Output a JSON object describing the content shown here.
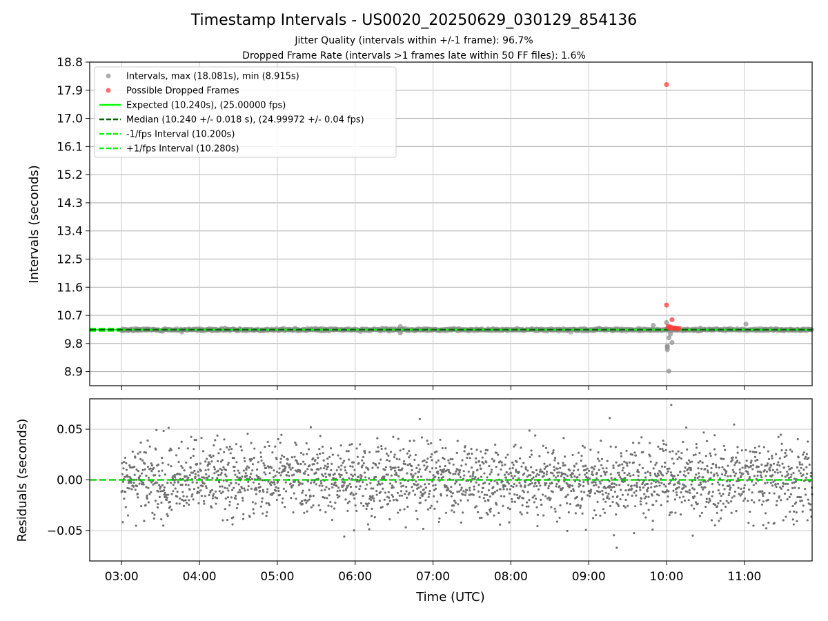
{
  "chart_data": [
    {
      "type": "scatter",
      "title": "Timestamp Intervals - US0020_20250629_030129_854136",
      "subtitle_lines": [
        "Jitter Quality (intervals within +/-1 frame): 96.7%",
        "Dropped Frame Rate (intervals >1 frames late within 50 FF files): 1.6%"
      ],
      "xlabel": "",
      "ylabel": "Intervals (seconds)",
      "x_ticks": [
        "03:00",
        "04:00",
        "05:00",
        "06:00",
        "07:00",
        "08:00",
        "09:00",
        "10:00",
        "11:00"
      ],
      "xlim_hours": [
        2.59,
        11.87
      ],
      "y_ticks": [
        "8.9",
        "9.8",
        "10.7",
        "11.6",
        "12.5",
        "13.4",
        "14.3",
        "15.2",
        "16.1",
        "17.0",
        "17.9",
        "18.8"
      ],
      "ylim": [
        8.45,
        18.8
      ],
      "grid": true,
      "legend_position": "top-left",
      "legend": [
        "Intervals, max (18.081s), min (8.915s)",
        "Possible Dropped Frames",
        "Expected (10.240s), (25.00000 fps)",
        "Median (10.240 +/- 0.018 s), (24.99972 +/- 0.04 fps)",
        "-1/fps Interval (10.200s)",
        "+1/fps Interval (10.280s)"
      ],
      "reference_lines": {
        "expected": 10.24,
        "median": 10.24,
        "minus_fps": 10.2,
        "plus_fps": 10.28
      },
      "series": [
        {
          "name": "Intervals, max (18.081s), min (8.915s)",
          "band": {
            "x_start_hour": 3.0,
            "x_end_hour": 11.87,
            "y_center": 10.24,
            "y_spread": 0.02
          },
          "outliers": [
            {
              "x_hour": 6.58,
              "y": 10.34
            },
            {
              "x_hour": 6.58,
              "y": 10.14
            },
            {
              "x_hour": 9.83,
              "y": 10.38
            },
            {
              "x_hour": 10.0,
              "y": 10.47
            },
            {
              "x_hour": 10.01,
              "y": 9.6
            },
            {
              "x_hour": 10.01,
              "y": 9.68
            },
            {
              "x_hour": 10.01,
              "y": 9.72
            },
            {
              "x_hour": 10.03,
              "y": 9.98
            },
            {
              "x_hour": 10.03,
              "y": 8.915
            },
            {
              "x_hour": 10.05,
              "y": 10.1
            },
            {
              "x_hour": 10.07,
              "y": 9.83
            },
            {
              "x_hour": 11.02,
              "y": 10.42
            }
          ]
        },
        {
          "name": "Possible Dropped Frames",
          "points": [
            {
              "x_hour": 10.0,
              "y": 18.081
            },
            {
              "x_hour": 10.0,
              "y": 11.03
            },
            {
              "x_hour": 10.07,
              "y": 10.56
            },
            {
              "x_hour": 10.02,
              "y": 10.35
            },
            {
              "x_hour": 10.03,
              "y": 10.3
            },
            {
              "x_hour": 10.05,
              "y": 10.33
            },
            {
              "x_hour": 10.06,
              "y": 10.29
            },
            {
              "x_hour": 10.08,
              "y": 10.3
            },
            {
              "x_hour": 10.1,
              "y": 10.29
            },
            {
              "x_hour": 10.12,
              "y": 10.29
            },
            {
              "x_hour": 10.14,
              "y": 10.28
            },
            {
              "x_hour": 10.16,
              "y": 10.28
            }
          ]
        }
      ],
      "colors": {
        "intervals": "#8c8c8c",
        "dropped": "#ff3b3b",
        "expected": "#00ff00",
        "median": "#006400",
        "fps_bounds": "#00ff00"
      }
    },
    {
      "type": "scatter",
      "title": "",
      "xlabel": "Time (UTC)",
      "ylabel": "Residuals (seconds)",
      "x_ticks": [
        "03:00",
        "04:00",
        "05:00",
        "06:00",
        "07:00",
        "08:00",
        "09:00",
        "10:00",
        "11:00"
      ],
      "xlim_hours": [
        2.59,
        11.87
      ],
      "y_ticks": [
        "0.05",
        "0.00",
        "−0.05"
      ],
      "y_tick_values": [
        0.05,
        0.0,
        -0.05
      ],
      "ylim": [
        -0.08,
        0.08
      ],
      "grid": true,
      "series": [
        {
          "name": "",
          "x_range_hours": [
            3.0,
            11.87
          ],
          "std": 0.018,
          "extremes": [
            {
              "x_hour": 10.06,
              "y": 0.074
            },
            {
              "x_hour": 9.36,
              "y": -0.067
            },
            {
              "x_hour": 5.43,
              "y": 0.052
            },
            {
              "x_hour": 6.83,
              "y": 0.06
            },
            {
              "x_hour": 9.27,
              "y": 0.061
            },
            {
              "x_hour": 5.86,
              "y": -0.056
            },
            {
              "x_hour": 9.82,
              "y": -0.049
            }
          ]
        }
      ],
      "reference_lines": {
        "zero": 0.0
      },
      "colors": {
        "points": "#707070",
        "zero_line": "#00cc00"
      }
    }
  ]
}
